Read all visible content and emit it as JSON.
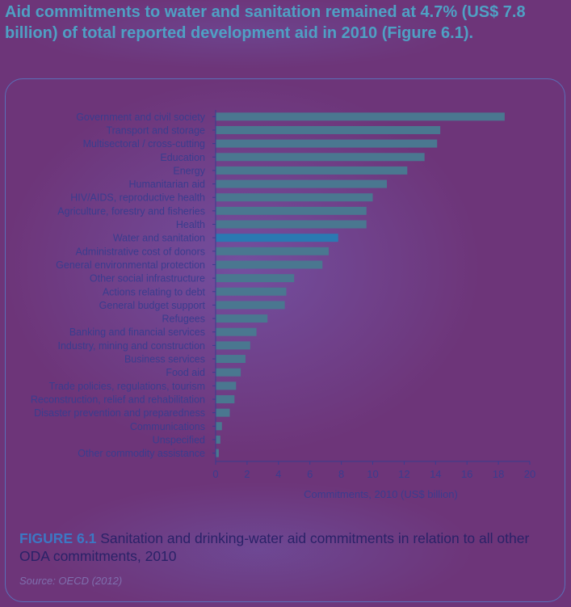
{
  "header": {
    "text": "Aid commitments to water and sanitation remained at 4.7% (US$ 7.8 billion) of total reported development aid in 2010 (Figure 6.1)."
  },
  "caption": {
    "label": "FIGURE 6.1",
    "text": "Sanitation and drinking-water aid commitments in relation to all other ODA commitments, 2010"
  },
  "source": "Source: OECD (2012)",
  "colors": {
    "bar": "#4a7790",
    "highlight_bar": "#2a79b2",
    "label_text": "#3a3c8e",
    "header_text": "#4fa0c4"
  },
  "chart_data": {
    "type": "bar",
    "orientation": "horizontal",
    "xlabel": "Commitments, 2010 (US$ billion)",
    "xlim": [
      0,
      20
    ],
    "xticks": [
      0,
      2,
      4,
      6,
      8,
      10,
      12,
      14,
      16,
      18,
      20
    ],
    "highlight": "Water and sanitation",
    "categories": [
      "Government and civil society",
      "Transport and storage",
      "Multisectoral / cross-cutting",
      "Education",
      "Energy",
      "Humanitarian aid",
      "HIV/AIDS, reproductive health",
      "Agriculture, forestry and fisheries",
      "Health",
      "Water and sanitation",
      "Administrative cost of donors",
      "General environmental protection",
      "Other social infrastructure",
      "Actions relating to debt",
      "General budget support",
      "Refugees",
      "Banking and financial services",
      "Industry, mining and construction",
      "Business services",
      "Food aid",
      "Trade policies, regulations, tourism",
      "Reconstruction, relief and rehabilitation",
      "Disaster prevention and preparedness",
      "Communications",
      "Unspecified",
      "Other commodity assistance"
    ],
    "values": [
      18.4,
      14.3,
      14.1,
      13.3,
      12.2,
      10.9,
      10.0,
      9.6,
      9.6,
      7.8,
      7.2,
      6.8,
      5.0,
      4.5,
      4.4,
      3.3,
      2.6,
      2.2,
      1.9,
      1.6,
      1.3,
      1.2,
      0.9,
      0.4,
      0.3,
      0.2
    ]
  }
}
